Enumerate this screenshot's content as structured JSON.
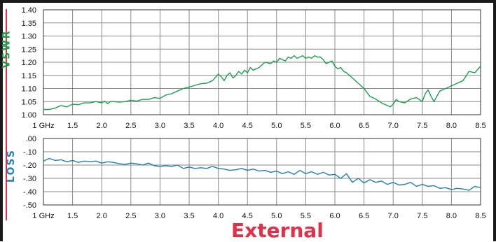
{
  "caption": "External",
  "chart_data": [
    {
      "type": "line",
      "ylabel": "VSWR",
      "xlim": [
        1,
        8.5
      ],
      "ylim": [
        1.0,
        1.4
      ],
      "grid": true,
      "x_ticks": [
        "1 GHz",
        "1.5",
        "2.0",
        "2.5",
        "3.0",
        "3.5",
        "4.0",
        "4.5",
        "5.0",
        "5.5",
        "6.0",
        "6.5",
        "7.0",
        "7.5",
        "8.0",
        "8.5"
      ],
      "y_ticks": [
        "1.00",
        "1.05",
        "1.10",
        "1.15",
        "1.20",
        "1.25",
        "1.30",
        "1.35",
        "1.40"
      ],
      "color": "#18a34a",
      "series": [
        {
          "x": [
            1.0,
            1.1,
            1.2,
            1.3,
            1.4,
            1.5,
            1.6,
            1.7,
            1.8,
            1.9,
            2.0,
            2.05,
            2.1,
            2.15,
            2.2,
            2.3,
            2.4,
            2.5,
            2.6,
            2.7,
            2.8,
            2.9,
            3.0,
            3.1,
            3.2,
            3.3,
            3.4,
            3.5,
            3.6,
            3.7,
            3.8,
            3.9,
            4.0,
            4.05,
            4.1,
            4.15,
            4.2,
            4.25,
            4.3,
            4.35,
            4.4,
            4.45,
            4.5,
            4.55,
            4.6,
            4.65,
            4.7,
            4.8,
            4.9,
            4.95,
            5.0,
            5.05,
            5.1,
            5.15,
            5.2,
            5.25,
            5.3,
            5.35,
            5.4,
            5.45,
            5.5,
            5.55,
            5.6,
            5.65,
            5.7,
            5.75,
            5.8,
            5.85,
            5.9,
            5.95,
            6.0,
            6.05,
            6.1,
            6.15,
            6.2,
            6.3,
            6.4,
            6.5,
            6.6,
            6.7,
            6.8,
            6.9,
            6.95,
            7.0,
            7.05,
            7.1,
            7.2,
            7.3,
            7.4,
            7.5,
            7.55,
            7.6,
            7.65,
            7.7,
            7.8,
            7.9,
            8.0,
            8.1,
            8.15,
            8.2,
            8.3,
            8.4,
            8.5
          ],
          "y": [
            1.02,
            1.02,
            1.025,
            1.035,
            1.03,
            1.04,
            1.038,
            1.045,
            1.045,
            1.05,
            1.045,
            1.052,
            1.042,
            1.05,
            1.05,
            1.048,
            1.05,
            1.055,
            1.052,
            1.058,
            1.058,
            1.065,
            1.062,
            1.075,
            1.08,
            1.09,
            1.1,
            1.105,
            1.112,
            1.118,
            1.12,
            1.13,
            1.155,
            1.145,
            1.13,
            1.15,
            1.16,
            1.14,
            1.15,
            1.165,
            1.155,
            1.17,
            1.16,
            1.18,
            1.17,
            1.175,
            1.18,
            1.2,
            1.195,
            1.205,
            1.2,
            1.215,
            1.21,
            1.205,
            1.22,
            1.215,
            1.225,
            1.215,
            1.22,
            1.225,
            1.215,
            1.22,
            1.215,
            1.225,
            1.22,
            1.22,
            1.21,
            1.195,
            1.2,
            1.205,
            1.185,
            1.175,
            1.18,
            1.165,
            1.16,
            1.14,
            1.12,
            1.1,
            1.07,
            1.06,
            1.045,
            1.035,
            1.03,
            1.04,
            1.058,
            1.05,
            1.045,
            1.06,
            1.065,
            1.05,
            1.08,
            1.095,
            1.07,
            1.05,
            1.09,
            1.1,
            1.11,
            1.12,
            1.125,
            1.13,
            1.165,
            1.16,
            1.185
          ]
        }
      ]
    },
    {
      "type": "line",
      "ylabel": "LOSS",
      "xlim": [
        1,
        8.5
      ],
      "ylim": [
        -0.5,
        0.0
      ],
      "grid": true,
      "x_ticks": [
        "1 GHz",
        "1.5",
        "2.0",
        "2.5",
        "3.0",
        "3.5",
        "4.0",
        "4.5",
        "5.0",
        "5.5",
        "6.0",
        "6.5",
        "7.0",
        "7.5",
        "8.0",
        "8.5"
      ],
      "y_ticks": [
        ".00",
        "-.10",
        "-.20",
        "-.30",
        "-.40",
        "-.50"
      ],
      "color": "#1f7fb8",
      "series": [
        {
          "x": [
            1.0,
            1.1,
            1.2,
            1.3,
            1.4,
            1.5,
            1.6,
            1.7,
            1.8,
            1.9,
            2.0,
            2.1,
            2.2,
            2.3,
            2.4,
            2.5,
            2.6,
            2.7,
            2.8,
            2.9,
            3.0,
            3.1,
            3.2,
            3.3,
            3.4,
            3.5,
            3.6,
            3.7,
            3.8,
            3.9,
            4.0,
            4.1,
            4.2,
            4.3,
            4.4,
            4.5,
            4.6,
            4.7,
            4.8,
            4.9,
            5.0,
            5.1,
            5.2,
            5.3,
            5.4,
            5.5,
            5.6,
            5.7,
            5.8,
            5.9,
            6.0,
            6.1,
            6.2,
            6.3,
            6.4,
            6.5,
            6.6,
            6.7,
            6.8,
            6.9,
            7.0,
            7.1,
            7.2,
            7.3,
            7.4,
            7.5,
            7.6,
            7.7,
            7.8,
            7.9,
            8.0,
            8.1,
            8.2,
            8.3,
            8.4,
            8.5
          ],
          "y": [
            -0.17,
            -0.15,
            -0.165,
            -0.16,
            -0.175,
            -0.165,
            -0.18,
            -0.17,
            -0.175,
            -0.17,
            -0.185,
            -0.175,
            -0.18,
            -0.19,
            -0.195,
            -0.185,
            -0.19,
            -0.2,
            -0.185,
            -0.205,
            -0.21,
            -0.205,
            -0.21,
            -0.2,
            -0.225,
            -0.215,
            -0.225,
            -0.22,
            -0.225,
            -0.21,
            -0.225,
            -0.23,
            -0.24,
            -0.235,
            -0.225,
            -0.24,
            -0.23,
            -0.245,
            -0.24,
            -0.255,
            -0.245,
            -0.265,
            -0.25,
            -0.27,
            -0.24,
            -0.265,
            -0.25,
            -0.27,
            -0.255,
            -0.275,
            -0.27,
            -0.3,
            -0.265,
            -0.33,
            -0.3,
            -0.335,
            -0.31,
            -0.33,
            -0.32,
            -0.345,
            -0.33,
            -0.35,
            -0.345,
            -0.33,
            -0.36,
            -0.345,
            -0.36,
            -0.355,
            -0.375,
            -0.37,
            -0.385,
            -0.375,
            -0.38,
            -0.39,
            -0.36,
            -0.37
          ]
        }
      ]
    }
  ]
}
